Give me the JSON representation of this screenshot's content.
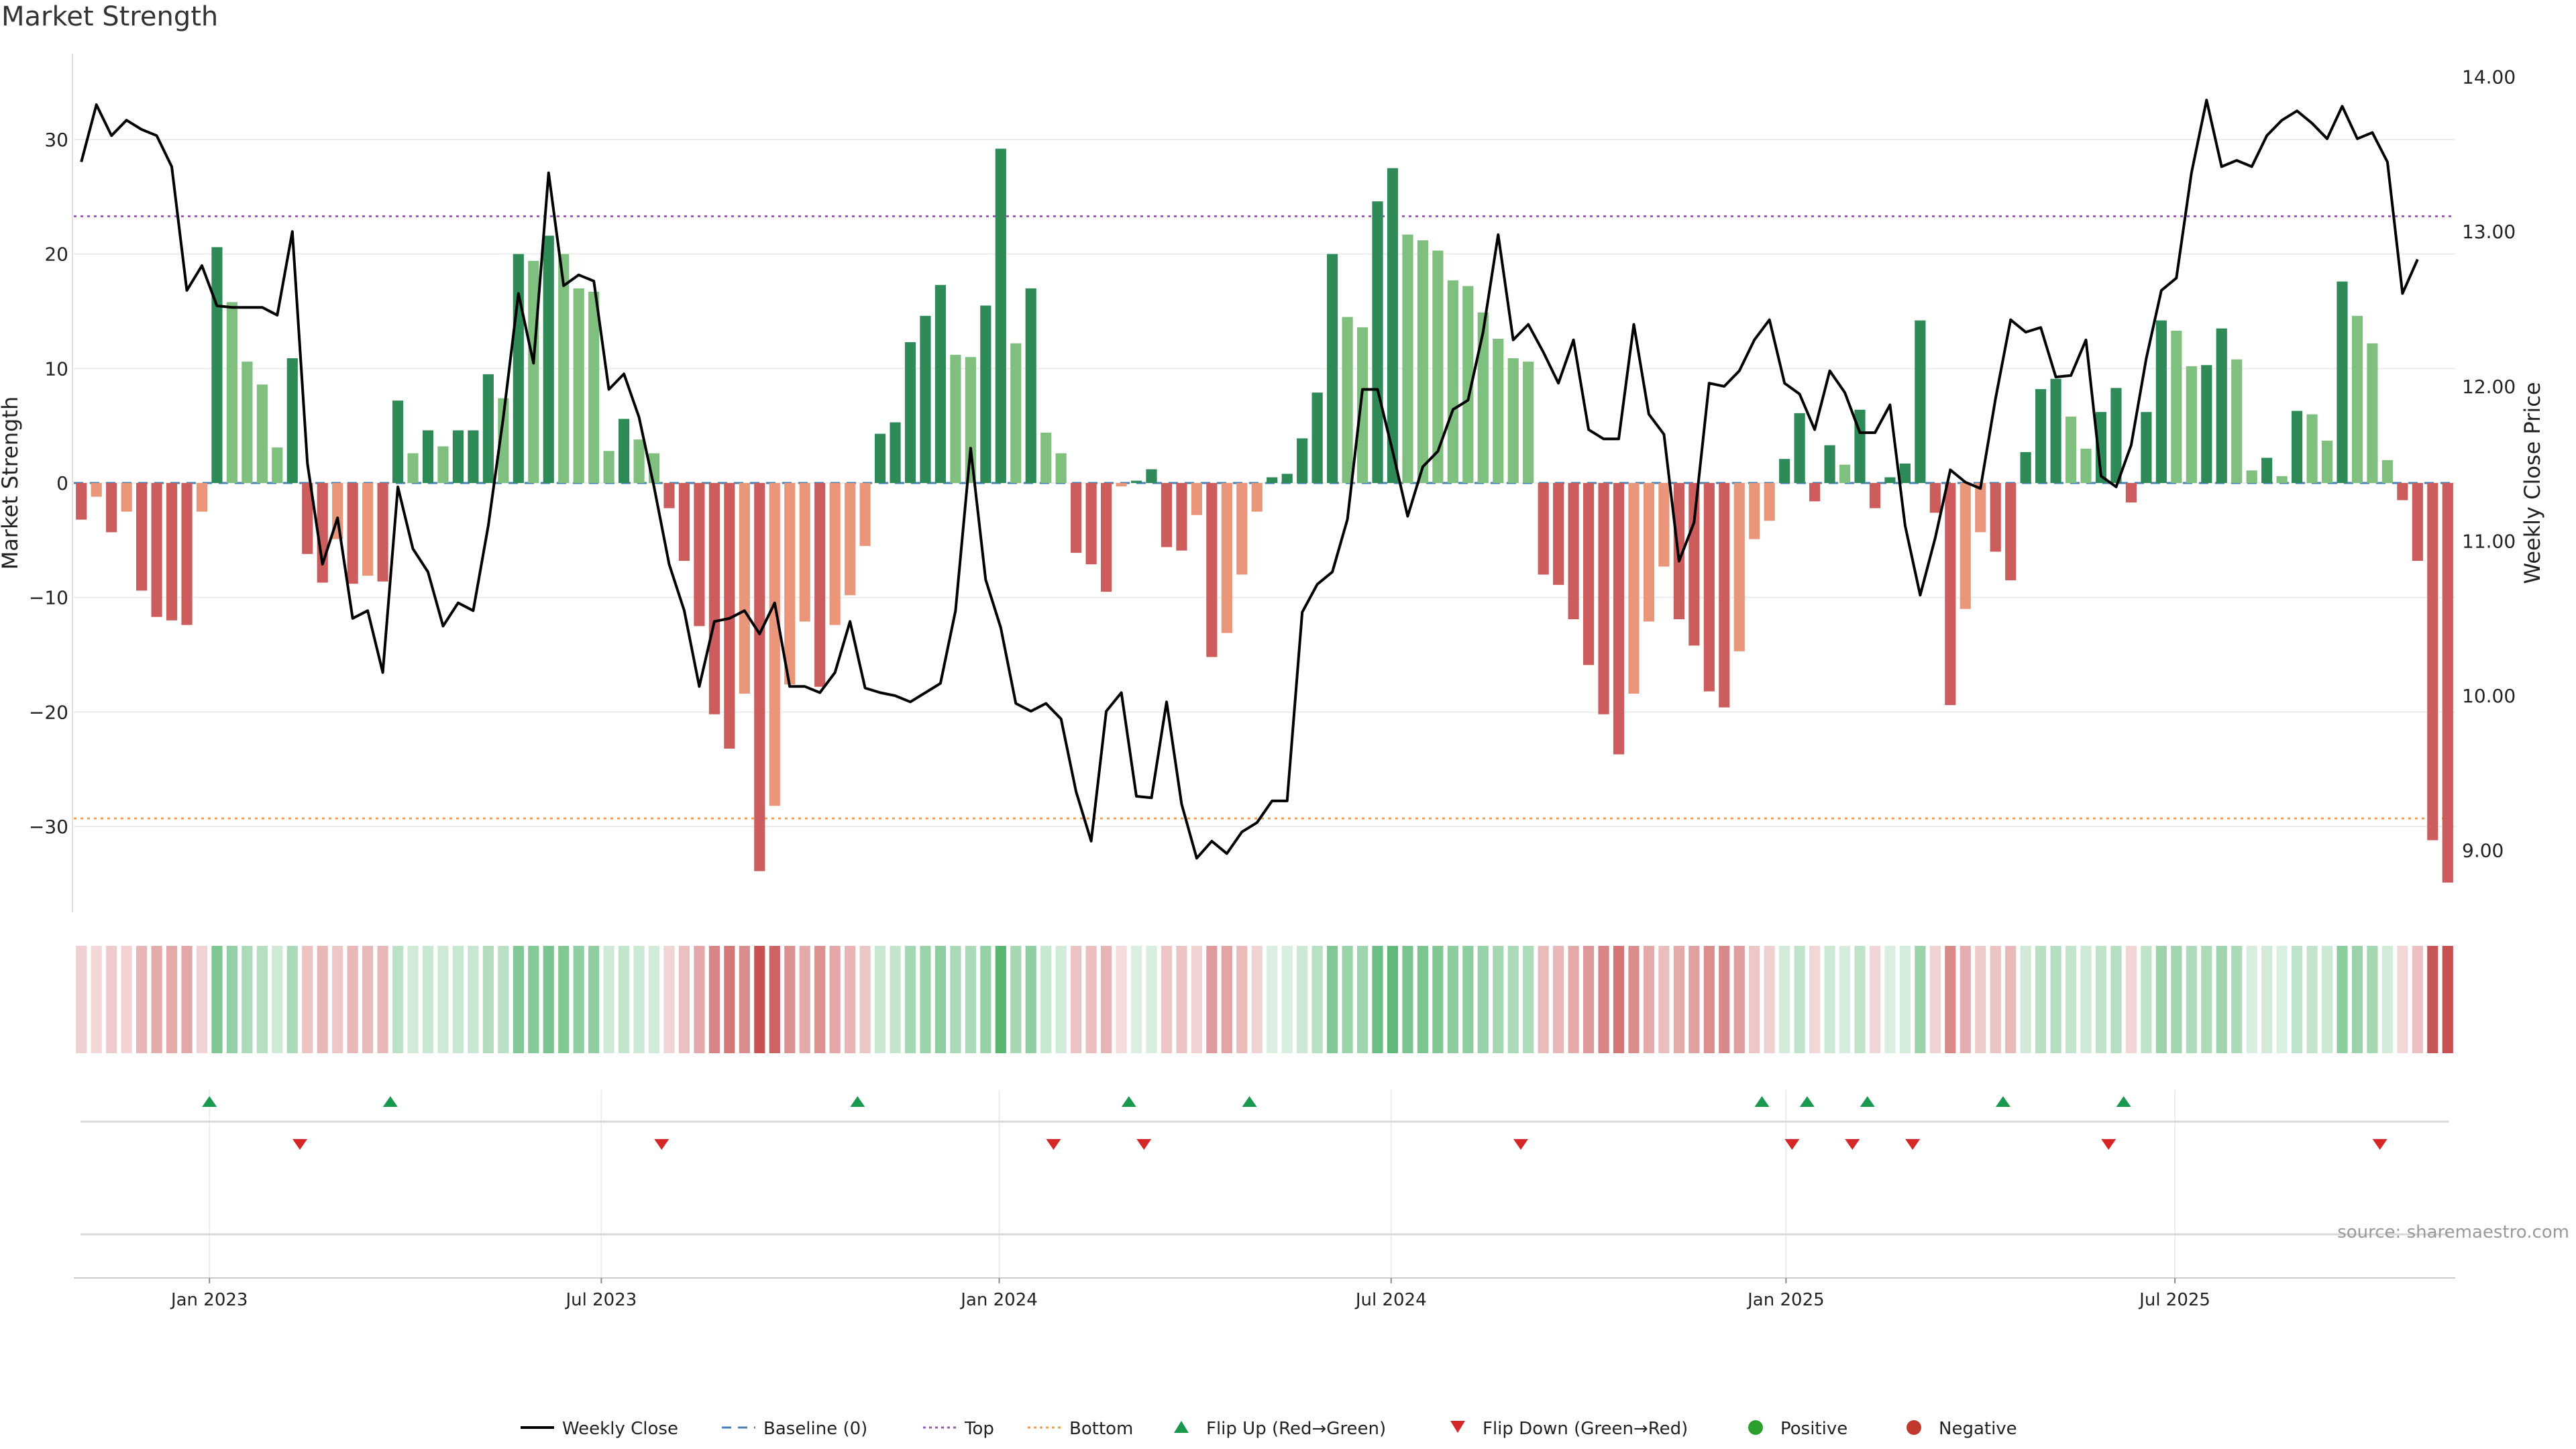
{
  "title": "Market Strength",
  "source_text": "source: sharemaestro.com",
  "colors": {
    "strong_green": "#2e8b57",
    "light_green": "#7fc07f",
    "strong_red": "#cd5c5c",
    "light_red": "#e9967a",
    "price_line": "#000000",
    "baseline": "#4682b4",
    "top_line": "#9b59b6",
    "bottom_line": "#f0a050",
    "flip_up": "#1a9850",
    "flip_down": "#d62728",
    "positive": "#2ca02c",
    "negative": "#c0392b"
  },
  "chart_data": {
    "type": "bar",
    "xlabel": "",
    "ylabel": "Market Strength",
    "y2label": "Weekly Close Price",
    "ylim": [
      -37.5,
      37.5
    ],
    "y2lim": [
      8.6,
      14.15
    ],
    "yticks": [
      -30,
      -20,
      -10,
      0,
      10,
      20,
      30
    ],
    "y2ticks": [
      "9.00",
      "10.00",
      "11.00",
      "12.00",
      "13.00",
      "14.00"
    ],
    "grid": true,
    "legend_position": "bottom-center",
    "start_week": "2022-10-30",
    "top_level": 23.3,
    "bottom_level": -29.3,
    "baseline": 0,
    "x_ticks": [
      {
        "label": "Jan 2023",
        "week": 9
      },
      {
        "label": "Jul 2023",
        "week": 35
      },
      {
        "label": "Jan 2024",
        "week": 61.4
      },
      {
        "label": "Jul 2024",
        "week": 87.4
      },
      {
        "label": "Jan 2025",
        "week": 113.6
      },
      {
        "label": "Jul 2025",
        "week": 139.4
      }
    ],
    "strength": [
      -3.2,
      -1.2,
      -4.3,
      -2.5,
      -9.4,
      -11.7,
      -12.0,
      -12.4,
      -2.5,
      20.6,
      15.8,
      10.6,
      8.6,
      3.1,
      10.9,
      -6.2,
      -8.7,
      -4.9,
      -8.8,
      -8.1,
      -8.6,
      7.2,
      2.6,
      4.6,
      3.2,
      4.6,
      4.6,
      9.5,
      7.4,
      20.0,
      19.4,
      21.6,
      20.0,
      17.0,
      16.7,
      2.8,
      5.6,
      3.8,
      2.6,
      -2.2,
      -6.8,
      -12.5,
      -20.2,
      -23.2,
      -18.4,
      -33.9,
      -28.2,
      -17.6,
      -12.1,
      -17.8,
      -12.4,
      -9.8,
      -5.5,
      4.3,
      5.3,
      12.3,
      14.6,
      17.3,
      11.2,
      11.0,
      15.5,
      29.2,
      12.2,
      17.0,
      4.4,
      2.6,
      -6.1,
      -7.1,
      -9.5,
      -0.3,
      0.2,
      1.2,
      -5.6,
      -5.9,
      -2.8,
      -15.2,
      -13.1,
      -8.0,
      -2.5,
      0.5,
      0.8,
      3.9,
      7.9,
      20.0,
      14.5,
      13.6,
      24.6,
      27.5,
      21.7,
      21.2,
      20.3,
      17.7,
      17.2,
      14.9,
      12.6,
      10.9,
      10.6,
      -8.0,
      -8.9,
      -11.9,
      -15.9,
      -20.2,
      -23.7,
      -18.4,
      -12.1,
      -7.3,
      -11.9,
      -14.2,
      -18.2,
      -19.6,
      -14.7,
      -4.9,
      -3.3,
      2.1,
      6.1,
      -1.6,
      3.3,
      1.6,
      6.4,
      -2.2,
      0.5,
      1.7,
      14.2,
      -2.6,
      -19.4,
      -11.0,
      -4.3,
      -6.0,
      -8.5,
      2.7,
      8.2,
      9.1,
      5.8,
      3.0,
      6.2,
      8.3,
      -1.7,
      6.2,
      14.2,
      13.3,
      10.2,
      10.3,
      13.5,
      10.8,
      1.1,
      2.2,
      0.6,
      6.3,
      6.0,
      3.7,
      17.6,
      14.6,
      12.2,
      2.0,
      -1.5,
      -6.8,
      -31.2,
      -34.9
    ],
    "price": [
      13.45,
      13.82,
      13.62,
      13.72,
      13.66,
      13.62,
      13.42,
      12.62,
      12.78,
      12.52,
      12.51,
      12.51,
      12.51,
      12.46,
      13.0,
      11.5,
      10.85,
      11.15,
      10.5,
      10.55,
      10.15,
      11.35,
      10.95,
      10.8,
      10.45,
      10.6,
      10.55,
      11.1,
      11.8,
      12.6,
      12.15,
      13.38,
      12.65,
      12.72,
      12.68,
      11.98,
      12.08,
      11.8,
      11.35,
      10.85,
      10.55,
      10.06,
      10.48,
      10.5,
      10.55,
      10.4,
      10.6,
      10.06,
      10.06,
      10.02,
      10.15,
      10.48,
      10.05,
      10.02,
      10.0,
      9.96,
      10.02,
      10.08,
      10.55,
      11.6,
      10.75,
      10.44,
      9.95,
      9.9,
      9.95,
      9.85,
      9.38,
      9.06,
      9.9,
      10.02,
      9.35,
      9.34,
      9.96,
      9.3,
      8.95,
      9.06,
      8.98,
      9.12,
      9.18,
      9.32,
      9.32,
      10.54,
      10.72,
      10.8,
      11.14,
      11.98,
      11.98,
      11.58,
      11.16,
      11.48,
      11.58,
      11.85,
      11.91,
      12.35,
      12.98,
      12.3,
      12.4,
      12.22,
      12.02,
      12.3,
      11.72,
      11.66,
      11.66,
      12.4,
      11.82,
      11.69,
      10.87,
      11.12,
      12.02,
      12.0,
      12.1,
      12.3,
      12.43,
      12.02,
      11.95,
      11.72,
      12.1,
      11.96,
      11.7,
      11.7,
      11.88,
      11.1,
      10.65,
      11.02,
      11.46,
      11.38,
      11.34,
      11.92,
      12.43,
      12.35,
      12.38,
      12.06,
      12.07,
      12.3,
      11.42,
      11.35,
      11.62,
      12.18,
      12.62,
      12.7,
      13.38,
      13.85,
      13.42,
      13.46,
      13.42,
      13.62,
      13.72,
      13.78,
      13.7,
      13.6,
      13.81,
      13.6,
      13.64,
      13.45,
      12.6,
      12.82
    ],
    "regime_values": [
      -3.2,
      -1.2,
      -4.3,
      -2.5,
      -9.4,
      -11.7,
      -12.0,
      -12.4,
      -2.5,
      20.6,
      15.8,
      10.6,
      8.6,
      3.1,
      10.9,
      -6.2,
      -8.7,
      -4.9,
      -8.8,
      -8.1,
      -8.6,
      7.2,
      2.6,
      4.6,
      3.2,
      4.6,
      4.6,
      9.5,
      7.4,
      20.0,
      19.4,
      21.6,
      20.0,
      17.0,
      16.7,
      2.8,
      5.6,
      3.8,
      2.6,
      -2.2,
      -6.8,
      -12.5,
      -20.2,
      -23.2,
      -18.4,
      -33.9,
      -28.2,
      -17.6,
      -12.1,
      -17.8,
      -12.4,
      -9.8,
      -5.5,
      4.3,
      5.3,
      12.3,
      14.6,
      17.3,
      11.2,
      11.0,
      15.5,
      29.2,
      12.2,
      17.0,
      4.4,
      2.6,
      -6.1,
      -7.1,
      -9.5,
      -0.3,
      0.2,
      1.2,
      -5.6,
      -5.9,
      -2.8,
      -15.2,
      -13.1,
      -8.0,
      -2.5,
      0.5,
      0.8,
      3.9,
      7.9,
      20.0,
      14.5,
      13.6,
      24.6,
      27.5,
      21.7,
      21.2,
      20.3,
      17.7,
      17.2,
      14.9,
      12.6,
      10.9,
      10.6,
      -8.0,
      -8.9,
      -11.9,
      -15.9,
      -20.2,
      -23.7,
      -18.4,
      -12.1,
      -7.3,
      -11.9,
      -14.2,
      -18.2,
      -19.6,
      -14.7,
      -4.9,
      -3.3,
      2.1,
      6.1,
      -1.6,
      3.3,
      1.6,
      6.4,
      -2.2,
      0.5,
      1.7,
      14.2,
      -2.6,
      -19.4,
      -11.0,
      -4.3,
      -6.0,
      -8.5,
      2.7,
      8.2,
      9.1,
      5.8,
      3.0,
      6.2,
      8.3,
      -1.7,
      6.2,
      14.2,
      13.3,
      10.2,
      10.3,
      13.5,
      10.8,
      1.1,
      2.2,
      0.6,
      6.3,
      6.0,
      3.7,
      17.6,
      14.6,
      12.2,
      2.0,
      -1.5,
      -6.8,
      -31.2,
      -34.9
    ],
    "flip_up_weeks": [
      9,
      21,
      52,
      70,
      78,
      112,
      115,
      119,
      128,
      136
    ],
    "flip_down_weeks": [
      15,
      39,
      65,
      71,
      96,
      114,
      118,
      122,
      135,
      153
    ],
    "legend": [
      {
        "label": "Weekly Close",
        "symbol": "line"
      },
      {
        "label": "Baseline (0)",
        "symbol": "dash"
      },
      {
        "label": "Top",
        "symbol": "dot"
      },
      {
        "label": "Bottom",
        "symbol": "dot-orange"
      },
      {
        "label": "Flip Up (Red→Green)",
        "symbol": "triangle-up"
      },
      {
        "label": "Flip Down (Green→Red)",
        "symbol": "triangle-down"
      },
      {
        "label": "Positive",
        "symbol": "circle-green"
      },
      {
        "label": "Negative",
        "symbol": "circle-red"
      }
    ]
  }
}
